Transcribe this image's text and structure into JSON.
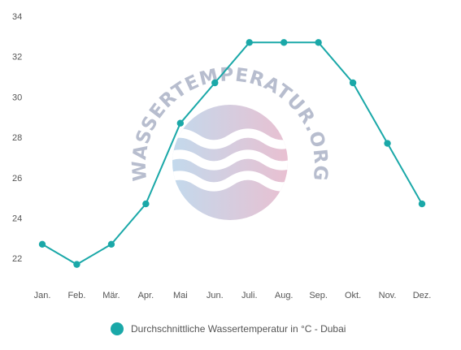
{
  "chart_data": {
    "type": "line",
    "categories": [
      "Jan.",
      "Feb.",
      "Mär.",
      "Apr.",
      "Mai",
      "Jun.",
      "Juli.",
      "Aug.",
      "Sep.",
      "Okt.",
      "Nov.",
      "Dez."
    ],
    "series": [
      {
        "name": "Durchschnittliche Wassertemperatur in °C - Dubai",
        "values": [
          22.7,
          21.7,
          22.7,
          24.7,
          28.7,
          30.7,
          32.7,
          32.7,
          32.7,
          30.7,
          27.7,
          24.7
        ]
      }
    ],
    "yticks": [
      22,
      24,
      26,
      28,
      30,
      32,
      34
    ],
    "ylim": [
      20.8,
      34
    ],
    "grid": false,
    "legend_position": "bottom",
    "series_color": "#1aa8a8",
    "title": "",
    "xlabel": "",
    "ylabel": ""
  },
  "legend": {
    "label": "Durchschnittliche Wassertemperatur in °C - Dubai"
  },
  "watermark": {
    "text": "WASSERTEMPERATUR.ORG",
    "logo_colors": [
      "#bcd5ea",
      "#e6b9cc"
    ]
  }
}
